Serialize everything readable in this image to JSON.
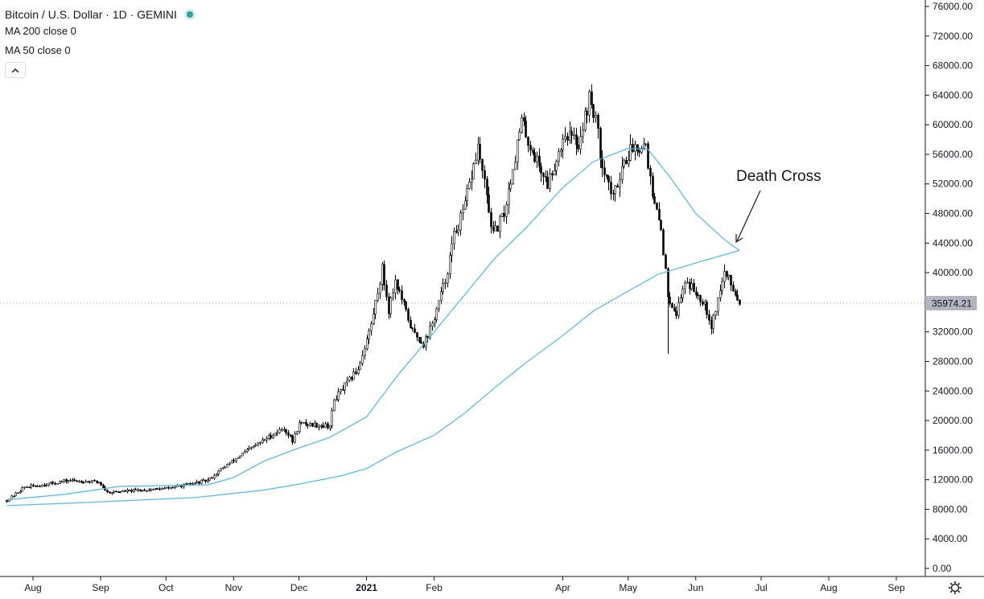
{
  "header": {
    "symbol_title": "Bitcoin / U.S. Dollar · 1D · GEMINI",
    "status_color": "#26a69a"
  },
  "indicators": [
    {
      "label": "MA 200 close 0"
    },
    {
      "label": "MA 50 close 0"
    }
  ],
  "collapse_icon": "chevron-up-icon",
  "last_price_label": "35974.21",
  "annotation": {
    "text": "Death Cross"
  },
  "settings_icon": "gear-icon",
  "chart_data": {
    "type": "candlestick",
    "x_ticks": [
      {
        "label": "Aug",
        "date": "2020-08-01"
      },
      {
        "label": "Sep",
        "date": "2020-09-01"
      },
      {
        "label": "Oct",
        "date": "2020-10-01"
      },
      {
        "label": "Nov",
        "date": "2020-11-01"
      },
      {
        "label": "Dec",
        "date": "2020-12-01"
      },
      {
        "label": "2021",
        "date": "2021-01-01",
        "bold": true
      },
      {
        "label": "Feb",
        "date": "2021-02-01"
      },
      {
        "label": "Apr",
        "date": "2021-04-01"
      },
      {
        "label": "May",
        "date": "2021-05-01"
      },
      {
        "label": "Jun",
        "date": "2021-06-01"
      },
      {
        "label": "Jul",
        "date": "2021-07-01"
      },
      {
        "label": "Aug",
        "date": "2021-08-01"
      },
      {
        "label": "Sep",
        "date": "2021-09-01"
      }
    ],
    "y_ticks": [
      "76000.00",
      "72000.00",
      "68000.00",
      "64000.00",
      "60000.00",
      "56000.00",
      "52000.00",
      "48000.00",
      "44000.00",
      "40000.00",
      "36000.00",
      "32000.00",
      "28000.00",
      "24000.00",
      "20000.00",
      "16000.00",
      "12000.00",
      "8000.00",
      "4000.00",
      "0.00"
    ],
    "ylim": [
      0,
      76000
    ],
    "last_price": 35974.21,
    "price_close_keypoints": [
      [
        "2020-07-20",
        9200
      ],
      [
        "2020-07-28",
        11000
      ],
      [
        "2020-08-03",
        11200
      ],
      [
        "2020-08-17",
        11900
      ],
      [
        "2020-08-31",
        11700
      ],
      [
        "2020-09-04",
        10300
      ],
      [
        "2020-09-30",
        10800
      ],
      [
        "2020-10-10",
        11300
      ],
      [
        "2020-10-20",
        11900
      ],
      [
        "2020-10-27",
        13600
      ],
      [
        "2020-11-05",
        15500
      ],
      [
        "2020-11-17",
        17800
      ],
      [
        "2020-11-24",
        19000
      ],
      [
        "2020-11-28",
        17200
      ],
      [
        "2020-12-01",
        19600
      ],
      [
        "2020-12-15",
        19300
      ],
      [
        "2020-12-17",
        22800
      ],
      [
        "2020-12-28",
        27000
      ],
      [
        "2021-01-03",
        33000
      ],
      [
        "2021-01-08",
        40500
      ],
      [
        "2021-01-11",
        35000
      ],
      [
        "2021-01-14",
        39000
      ],
      [
        "2021-01-22",
        32000
      ],
      [
        "2021-01-27",
        30400
      ],
      [
        "2021-01-31",
        33000
      ],
      [
        "2021-02-06",
        39000
      ],
      [
        "2021-02-10",
        45000
      ],
      [
        "2021-02-14",
        48000
      ],
      [
        "2021-02-21",
        57000
      ],
      [
        "2021-02-28",
        45000
      ],
      [
        "2021-03-05",
        48000
      ],
      [
        "2021-03-13",
        60500
      ],
      [
        "2021-03-17",
        57000
      ],
      [
        "2021-03-25",
        52000
      ],
      [
        "2021-04-02",
        59000
      ],
      [
        "2021-04-08",
        57500
      ],
      [
        "2021-04-13",
        63500
      ],
      [
        "2021-04-16",
        61000
      ],
      [
        "2021-04-18",
        56000
      ],
      [
        "2021-04-24",
        50000
      ],
      [
        "2021-04-28",
        54500
      ],
      [
        "2021-05-03",
        57000
      ],
      [
        "2021-05-09",
        57500
      ],
      [
        "2021-05-12",
        50000
      ],
      [
        "2021-05-16",
        46000
      ],
      [
        "2021-05-19",
        37000
      ],
      [
        "2021-05-23",
        34500
      ],
      [
        "2021-05-27",
        39000
      ],
      [
        "2021-06-05",
        36000
      ],
      [
        "2021-06-08",
        32800
      ],
      [
        "2021-06-14",
        40000
      ],
      [
        "2021-06-17",
        38500
      ],
      [
        "2021-06-21",
        35974
      ]
    ],
    "series": [
      {
        "name": "MA 50",
        "color": "#4db8e8",
        "points": [
          [
            "2020-07-20",
            9300
          ],
          [
            "2020-08-15",
            10000
          ],
          [
            "2020-09-10",
            11100
          ],
          [
            "2020-09-30",
            11200
          ],
          [
            "2020-10-20",
            11300
          ],
          [
            "2020-11-01",
            12300
          ],
          [
            "2020-11-15",
            14500
          ],
          [
            "2020-12-01",
            16300
          ],
          [
            "2020-12-15",
            17700
          ],
          [
            "2021-01-01",
            20500
          ],
          [
            "2021-01-15",
            26000
          ],
          [
            "2021-02-01",
            32000
          ],
          [
            "2021-02-15",
            37000
          ],
          [
            "2021-03-01",
            42000
          ],
          [
            "2021-03-15",
            46000
          ],
          [
            "2021-04-01",
            51500
          ],
          [
            "2021-04-15",
            55000
          ],
          [
            "2021-05-01",
            56800
          ],
          [
            "2021-05-10",
            56700
          ],
          [
            "2021-05-20",
            53000
          ],
          [
            "2021-06-01",
            48000
          ],
          [
            "2021-06-14",
            44500
          ],
          [
            "2021-06-21",
            43000
          ]
        ]
      },
      {
        "name": "MA 200",
        "color": "#4db8e8",
        "points": [
          [
            "2020-07-20",
            8500
          ],
          [
            "2020-08-15",
            8800
          ],
          [
            "2020-09-15",
            9200
          ],
          [
            "2020-10-15",
            9600
          ],
          [
            "2020-11-15",
            10600
          ],
          [
            "2020-12-01",
            11400
          ],
          [
            "2020-12-20",
            12500
          ],
          [
            "2021-01-01",
            13500
          ],
          [
            "2021-01-15",
            15800
          ],
          [
            "2021-02-01",
            18000
          ],
          [
            "2021-02-15",
            21000
          ],
          [
            "2021-03-01",
            24500
          ],
          [
            "2021-03-15",
            27800
          ],
          [
            "2021-04-01",
            31500
          ],
          [
            "2021-04-15",
            34800
          ],
          [
            "2021-05-01",
            37500
          ],
          [
            "2021-05-15",
            39800
          ],
          [
            "2021-06-01",
            41300
          ],
          [
            "2021-06-21",
            43000
          ]
        ]
      }
    ]
  }
}
